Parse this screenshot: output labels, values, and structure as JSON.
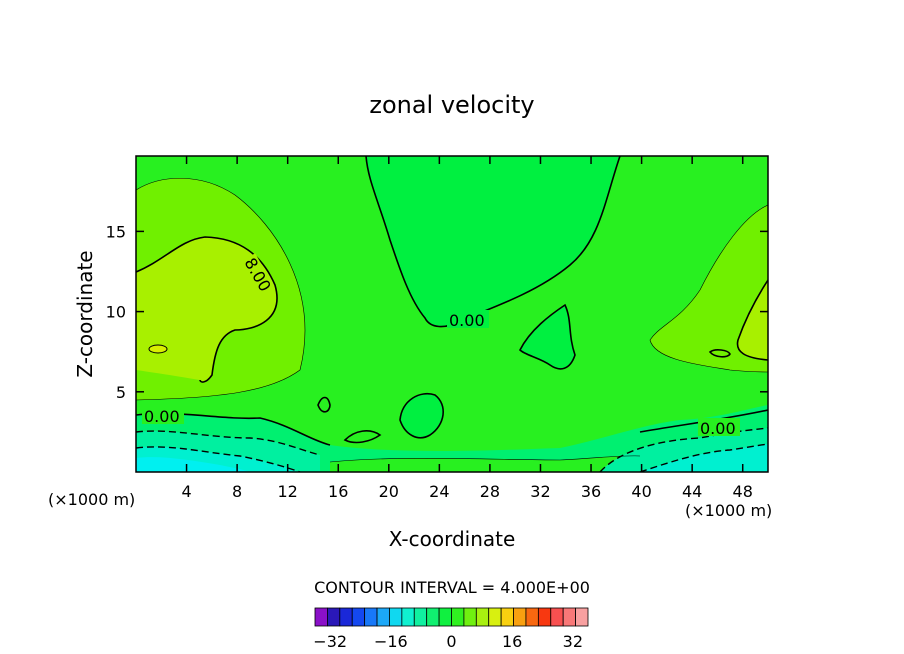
{
  "chart_data": {
    "type": "contour",
    "title": "zonal velocity",
    "xlabel": "X-coordinate",
    "ylabel": "Z-coordinate",
    "x_unit_label": "(×1000 m)",
    "xlim": [
      0,
      50
    ],
    "ylim": [
      0,
      19.7
    ],
    "x_ticks": [
      4,
      8,
      12,
      16,
      20,
      24,
      28,
      32,
      36,
      40,
      44,
      48
    ],
    "y_ticks": [
      5,
      10,
      15
    ],
    "contour_interval_text": "CONTOUR INTERVAL = 4.000E+00",
    "contour_labels": [
      "0.00",
      "8.00",
      "0.00",
      "0.00"
    ],
    "colorbar": {
      "min": -36,
      "max": 36,
      "step": 4,
      "tick_values": [
        -32,
        -16,
        0,
        16,
        32
      ],
      "tick_labels": [
        "−32",
        "−16",
        "0",
        "16",
        "32"
      ],
      "colors": [
        "#8a10c8",
        "#2a18b8",
        "#1a28d8",
        "#1448f0",
        "#1878f8",
        "#1ca8f8",
        "#10d8f0",
        "#10f0d0",
        "#10f0a0",
        "#10f070",
        "#10f040",
        "#30f020",
        "#70f010",
        "#a8f010",
        "#d8f010",
        "#f8d010",
        "#f8a010",
        "#f86810",
        "#f83810",
        "#f85050",
        "#f87878",
        "#f8a0a0"
      ]
    },
    "fill_colors": {
      "lt_0": "#00f040",
      "0_4": "#28f020",
      "4_8": "#70f000",
      "8_12": "#a8f000",
      "12_16": "#d8f000",
      "neg_4_0": "#00f070",
      "neg_8_4": "#00f0a0",
      "neg_12_8": "#00f0d0",
      "neg_16_12": "#00f0f0"
    }
  }
}
